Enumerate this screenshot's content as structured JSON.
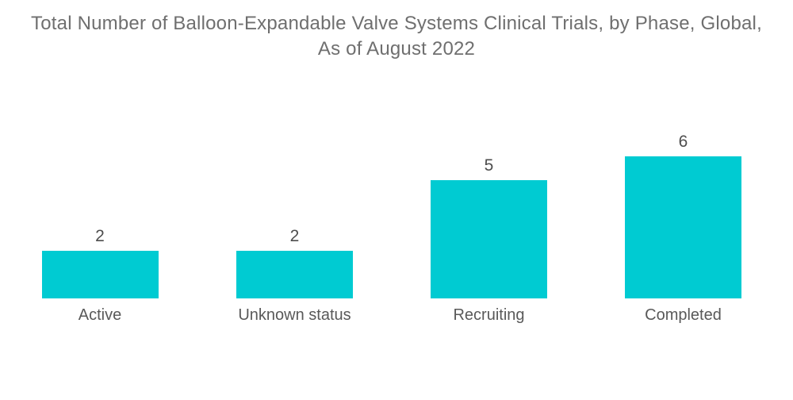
{
  "title": "Total Number of Balloon-Expandable Valve Systems Clinical Trials, by Phase, Global, As of August 2022",
  "chart_data": {
    "type": "bar",
    "title": "Total Number of Balloon-Expandable Valve Systems Clinical Trials, by Phase, Global, As of August 2022",
    "categories": [
      "Active",
      "Unknown status",
      "Recruiting",
      "Completed"
    ],
    "values": [
      2,
      2,
      5,
      6
    ],
    "xlabel": "",
    "ylabel": "",
    "ylim": [
      0,
      6
    ],
    "grid": false,
    "legend": false,
    "axes_visible": false,
    "value_labels_shown": true,
    "colors": {
      "bar": "#00cbd2",
      "value_label": "#4d4d4d",
      "category_label": "#595959",
      "title": "#6f6f6f",
      "background": "#ffffff"
    }
  }
}
